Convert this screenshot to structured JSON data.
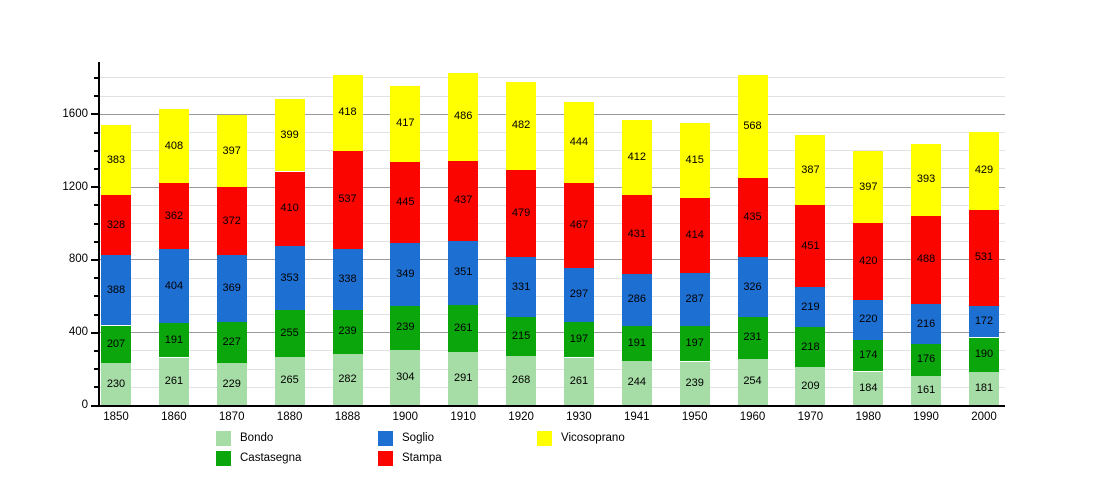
{
  "chart_data": {
    "type": "bar",
    "stacked": true,
    "title": "",
    "xlabel": "",
    "ylabel": "",
    "categories": [
      "1850",
      "1860",
      "1870",
      "1880",
      "1888",
      "1900",
      "1910",
      "1920",
      "1930",
      "1941",
      "1950",
      "1960",
      "1970",
      "1980",
      "1990",
      "2000"
    ],
    "series": [
      {
        "name": "Bondo",
        "color": "#a6dca6",
        "values": [
          230,
          261,
          229,
          265,
          282,
          304,
          291,
          268,
          261,
          244,
          239,
          254,
          209,
          184,
          161,
          181
        ]
      },
      {
        "name": "Castasegna",
        "color": "#0ba60b",
        "values": [
          207,
          191,
          227,
          255,
          239,
          239,
          261,
          215,
          197,
          191,
          197,
          231,
          218,
          174,
          176,
          190
        ]
      },
      {
        "name": "Soglio",
        "color": "#1e6fd2",
        "values": [
          388,
          404,
          369,
          353,
          338,
          349,
          351,
          331,
          297,
          286,
          287,
          326,
          219,
          220,
          216,
          172
        ]
      },
      {
        "name": "Stampa",
        "color": "#fb0500",
        "values": [
          328,
          362,
          372,
          410,
          537,
          445,
          437,
          479,
          467,
          431,
          414,
          435,
          451,
          420,
          488,
          531
        ]
      },
      {
        "name": "Vicosoprano",
        "color": "#ffff00",
        "values": [
          383,
          408,
          397,
          399,
          418,
          417,
          486,
          482,
          444,
          412,
          415,
          568,
          387,
          397,
          393,
          429
        ]
      }
    ],
    "y_ticks": [
      0,
      400,
      800,
      1200,
      1600
    ],
    "y_minor_step": 100,
    "y_minor_max": 1800,
    "ylim": [
      0,
      1885
    ],
    "grid": true,
    "bar_value_labels": true,
    "legend_position": "bottom"
  },
  "legend": {
    "items": [
      "Bondo",
      "Castasegna",
      "Soglio",
      "Stampa",
      "Vicosoprano"
    ]
  }
}
